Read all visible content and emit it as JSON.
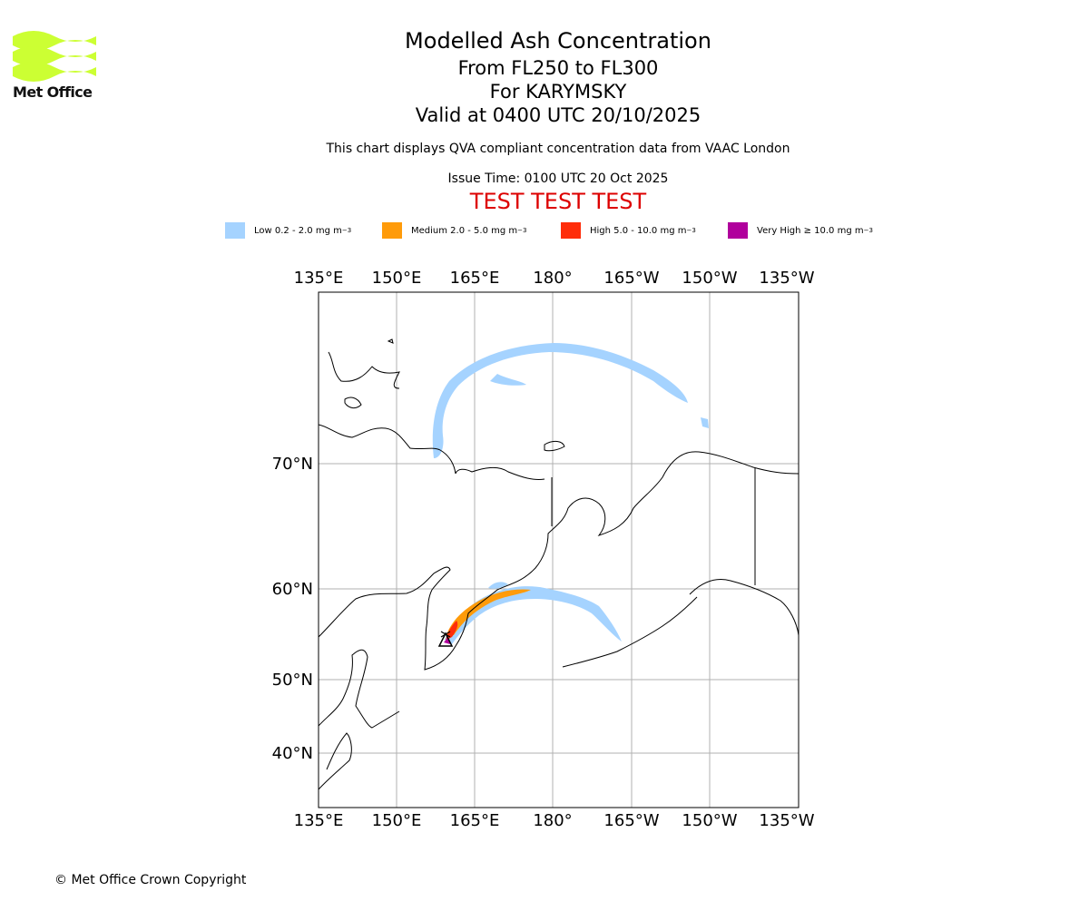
{
  "logo": {
    "brand": "Met Office",
    "colors": {
      "waves": "#ccff33",
      "text": "#111111"
    }
  },
  "header": {
    "title": "Modelled Ash Concentration",
    "levels": "From FL250 to FL300",
    "volcano": "For KARYMSKY",
    "valid": "Valid at 0400 UTC 20/10/2025",
    "description": "This chart displays QVA compliant concentration data from VAAC London",
    "issue_time": "Issue Time: 0100 UTC 20 Oct 2025",
    "test_banner": "TEST TEST TEST"
  },
  "legend": [
    {
      "label": "Low 0.2 - 2.0 mg m",
      "unit_sup": "−3",
      "color": "#a5d3ff"
    },
    {
      "label": "Medium 2.0 - 5.0 mg m",
      "unit_sup": "−3",
      "color": "#ff9b0a"
    },
    {
      "label": "High 5.0 - 10.0 mg m",
      "unit_sup": "−3",
      "color": "#ff2d0a"
    },
    {
      "label": "Very High  ≥  10.0 mg m",
      "unit_sup": "−3",
      "color": "#b0009c"
    }
  ],
  "map": {
    "lon_ticks": [
      "135°E",
      "150°E",
      "165°E",
      "180°",
      "165°W",
      "150°W",
      "135°W"
    ],
    "lat_ticks": [
      "70°N",
      "60°N",
      "50°N",
      "40°N"
    ],
    "volcano_marker": "volcano-triangle-icon",
    "colors": {
      "grid": "#b0b0b0",
      "coast": "#000000"
    }
  },
  "footer": {
    "copyright": "© Met Office Crown Copyright"
  }
}
